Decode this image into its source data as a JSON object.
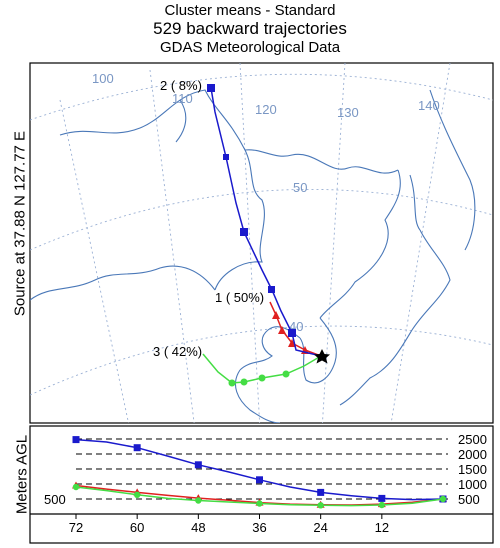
{
  "header": {
    "line1": "Cluster means - Standard",
    "line2": "529 backward trajectories",
    "line3": "GDAS Meteorological Data"
  },
  "side_label": "Source   at   37.88 N   127.77 E",
  "colors": {
    "cluster1": "#e02020",
    "cluster2": "#1a1acc",
    "cluster3": "#44dd44",
    "graticule": "#7a97c4",
    "coast": "#4a78b8"
  },
  "map": {
    "longitude_labels": [
      "100",
      "110",
      "120",
      "130",
      "140"
    ],
    "latitude_labels": [
      "50",
      "40"
    ],
    "source_marker": "star-icon"
  },
  "chart_data": [
    {
      "type": "line",
      "title": "",
      "legend": [
        {
          "label": "1 ( 50%)",
          "color": "#e02020"
        },
        {
          "label": "2 (  8%)",
          "color": "#1a1acc"
        },
        {
          "label": "3 ( 42%)",
          "color": "#44dd44"
        }
      ],
      "xlabel": "",
      "ylabel": ""
    },
    {
      "type": "line",
      "xlabel": "",
      "ylabel": "Meters AGL",
      "x_ticks": [
        "12",
        "24",
        "36",
        "48",
        "60",
        "72"
      ],
      "y_ticks": [
        "500",
        "1000",
        "1500",
        "2000",
        "2500"
      ],
      "left_label": "500",
      "xlim": [
        72,
        0
      ],
      "ylim": [
        0,
        2800
      ],
      "grid": "dashed horizontal",
      "series": [
        {
          "color": "#e02020",
          "x": [
            0,
            6,
            12,
            18,
            24,
            30,
            36,
            42,
            48,
            54,
            60,
            66,
            72
          ],
          "y": [
            500,
            390,
            330,
            300,
            310,
            330,
            380,
            460,
            530,
            620,
            720,
            830,
            950
          ]
        },
        {
          "color": "#1a1acc",
          "x": [
            0,
            6,
            12,
            18,
            24,
            30,
            36,
            42,
            48,
            54,
            60,
            66,
            72
          ],
          "y": [
            500,
            480,
            520,
            610,
            720,
            900,
            1140,
            1400,
            1640,
            1930,
            2210,
            2400,
            2480
          ]
        },
        {
          "color": "#44dd44",
          "x": [
            0,
            6,
            12,
            18,
            24,
            30,
            36,
            42,
            48,
            54,
            60,
            66,
            72
          ],
          "y": [
            500,
            360,
            300,
            280,
            290,
            310,
            350,
            400,
            450,
            520,
            640,
            780,
            900
          ]
        }
      ]
    }
  ]
}
